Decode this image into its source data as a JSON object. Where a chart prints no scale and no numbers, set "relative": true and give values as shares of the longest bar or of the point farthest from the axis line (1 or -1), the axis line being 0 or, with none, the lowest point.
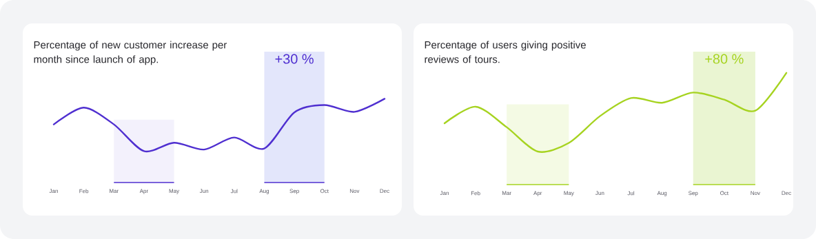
{
  "chart_data": [
    {
      "type": "line",
      "title": "Percentage of new customer increase per month since launch of app.",
      "relative": true,
      "categories": [
        "Jan",
        "Feb",
        "Mar",
        "Apr",
        "May",
        "Jun",
        "Jul",
        "Aug",
        "Sep",
        "Oct",
        "Nov",
        "Dec"
      ],
      "series": [
        {
          "color": "#4f2fd0",
          "values": [
            0.51,
            0.83,
            0.51,
            0,
            0.16,
            0.03,
            0.26,
            0.05,
            0.74,
            0.88,
            0.75,
            1
          ]
        }
      ],
      "bands": [
        {
          "axis": "x",
          "from": "Mar",
          "to": "May",
          "color": "#f3f1fc"
        },
        {
          "axis": "x",
          "from": "Aug",
          "to": "Oct",
          "label": "+30 %",
          "color": "#e3e6fb"
        }
      ]
    },
    {
      "type": "line",
      "title": "Percentage of users giving positive reviews of tours.",
      "relative": true,
      "categories": [
        "Jan",
        "Feb",
        "Mar",
        "Apr",
        "May",
        "Jun",
        "Jul",
        "Aug",
        "Sep",
        "Oct",
        "Nov",
        "Dec"
      ],
      "series": [
        {
          "color": "#a6d320",
          "values": [
            0.36,
            0.57,
            0.31,
            0,
            0.11,
            0.45,
            0.68,
            0.62,
            0.75,
            0.66,
            0.52,
            1
          ]
        }
      ],
      "bands": [
        {
          "axis": "x",
          "from": "Mar",
          "to": "May",
          "color": "#f4fae4"
        },
        {
          "axis": "x",
          "from": "Sep",
          "to": "Nov",
          "label": "+80 %",
          "color": "#eaf5d2"
        }
      ]
    }
  ]
}
